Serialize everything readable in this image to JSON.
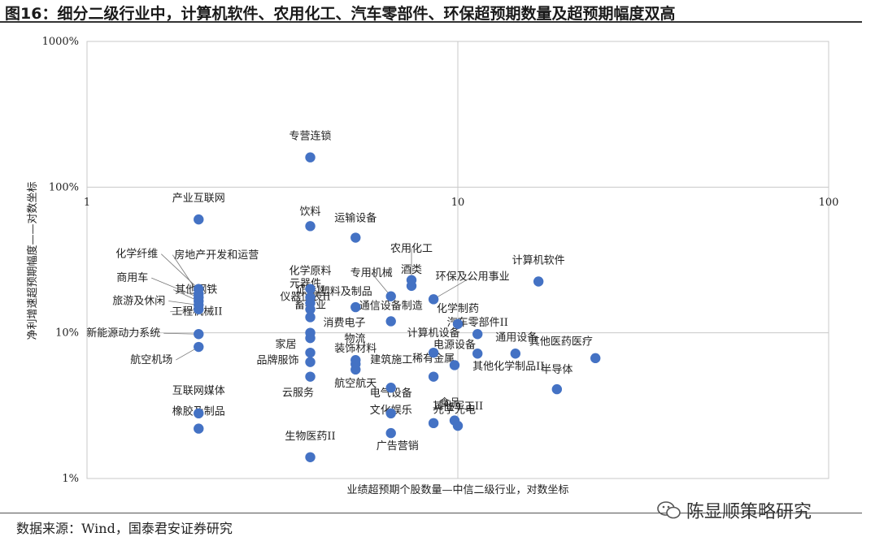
{
  "figure": {
    "title": "图16：细分二级行业中，计算机软件、农用化工、汽车零部件、环保超预期数量及超预期幅度双高",
    "source": "数据来源：Wind，国泰君安证券研究",
    "watermark": "陈显顺策略研究"
  },
  "chart_data": {
    "type": "scatter",
    "title": "",
    "xlabel": "业绩超预期个股数量—中信二级行业，对数坐标",
    "ylabel": "净利增速超预期幅度——对数坐标",
    "x_scale": "log",
    "y_scale": "log",
    "xlim": [
      1,
      100
    ],
    "ylim": [
      1,
      1000
    ],
    "x_ticks": [
      {
        "value": 1,
        "label": "1"
      },
      {
        "value": 10,
        "label": "10"
      },
      {
        "value": 100,
        "label": "100"
      }
    ],
    "y_ticks": [
      {
        "value": 1,
        "label": "1%"
      },
      {
        "value": 10,
        "label": "10%"
      },
      {
        "value": 100,
        "label": "100%"
      },
      {
        "value": 1000,
        "label": "1000%"
      }
    ],
    "grid": true,
    "marker_color": "#4472C4",
    "points": [
      {
        "label": "专营连锁",
        "x": 4,
        "y": 160
      },
      {
        "label": "产业互联网",
        "x": 2,
        "y": 60
      },
      {
        "label": "饮料",
        "x": 4,
        "y": 54
      },
      {
        "label": "运输设备",
        "x": 5.3,
        "y": 45
      },
      {
        "label": "化学纤维",
        "x": 2,
        "y": 20
      },
      {
        "label": "房地产开发和运营",
        "x": 2,
        "y": 18.5
      },
      {
        "label": "商用车",
        "x": 2,
        "y": 17.5
      },
      {
        "label": "其他钢铁",
        "x": 2,
        "y": 16.5
      },
      {
        "label": "旅游及休闲",
        "x": 2,
        "y": 15.5
      },
      {
        "label": "工程机械II",
        "x": 2,
        "y": 14.5
      },
      {
        "label": "新能源动力系统",
        "x": 2,
        "y": 9.8
      },
      {
        "label": "航空机场",
        "x": 2,
        "y": 8
      },
      {
        "label": "化学原料",
        "x": 4,
        "y": 20
      },
      {
        "label": "元器件",
        "x": 4,
        "y": 17.5
      },
      {
        "label": "证券II",
        "x": 4,
        "y": 16
      },
      {
        "label": "仪器仪表II",
        "x": 4,
        "y": 14.5
      },
      {
        "label": "畜牧业",
        "x": 4,
        "y": 12.8
      },
      {
        "label": "塑料及制品",
        "x": 5.3,
        "y": 15
      },
      {
        "label": "专用机械",
        "x": 6.6,
        "y": 17.8
      },
      {
        "label": "农用化工",
        "x": 7.5,
        "y": 23
      },
      {
        "label": "酒类",
        "x": 7.5,
        "y": 21
      },
      {
        "label": "通信设备制造",
        "x": 6.6,
        "y": 12
      },
      {
        "label": "环保及公用事业",
        "x": 8.6,
        "y": 17
      },
      {
        "label": "消费电子",
        "x": 4,
        "y": 10
      },
      {
        "label": "物流",
        "x": 4,
        "y": 9.2
      },
      {
        "label": "家居",
        "x": 4,
        "y": 7.3
      },
      {
        "label": "装饰材料",
        "x": 5.3,
        "y": 6.5
      },
      {
        "label": "品牌服饰",
        "x": 4,
        "y": 6.3
      },
      {
        "label": "建筑施工",
        "x": 5.3,
        "y": 6.1
      },
      {
        "label": "航空航天",
        "x": 5.3,
        "y": 5.6
      },
      {
        "label": "云服务",
        "x": 4,
        "y": 5
      },
      {
        "label": "电气设备",
        "x": 6.6,
        "y": 4.2
      },
      {
        "label": "计算机设备",
        "x": 8.6,
        "y": 7.3
      },
      {
        "label": "电源设备",
        "x": 9.8,
        "y": 6
      },
      {
        "label": "稀有金属",
        "x": 8.6,
        "y": 5
      },
      {
        "label": "化学制药",
        "x": 10,
        "y": 11.5
      },
      {
        "label": "汽车零部件II",
        "x": 11.3,
        "y": 9.8
      },
      {
        "label": "计算机软件",
        "x": 16.5,
        "y": 22.5
      },
      {
        "label": "通用设备",
        "x": 11.3,
        "y": 7.2
      },
      {
        "label": "其他医药医疗",
        "x": 14.3,
        "y": 7.2
      },
      {
        "label": "其他化学制品II",
        "x": 23.5,
        "y": 6.7
      },
      {
        "label": "半导体",
        "x": 18.5,
        "y": 4.1
      },
      {
        "label": "互联网媒体",
        "x": 2,
        "y": 2.8
      },
      {
        "label": "橡胶及制品",
        "x": 2,
        "y": 2.2
      },
      {
        "label": "文化娱乐",
        "x": 6.6,
        "y": 2.8
      },
      {
        "label": "食品",
        "x": 8.6,
        "y": 2.4
      },
      {
        "label": "光学光电",
        "x": 9.8,
        "y": 2.5
      },
      {
        "label": "其他军工II",
        "x": 10,
        "y": 2.3
      },
      {
        "label": "广告营销",
        "x": 6.6,
        "y": 2.05
      },
      {
        "label": "生物医药II",
        "x": 4,
        "y": 1.4
      }
    ]
  }
}
